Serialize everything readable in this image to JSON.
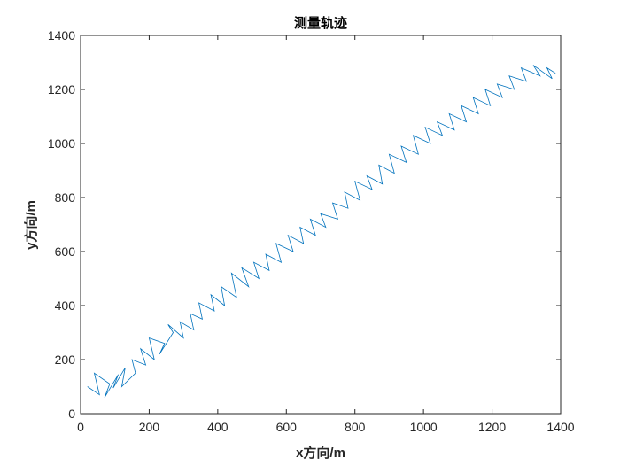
{
  "chart_data": {
    "type": "line",
    "title": "测量轨迹",
    "xlabel": "x方向/m",
    "ylabel": "y方向/m",
    "xlim": [
      0,
      1400
    ],
    "ylim": [
      0,
      1400
    ],
    "xticks": [
      "0",
      "200",
      "400",
      "600",
      "800",
      "1000",
      "1200",
      "1400"
    ],
    "yticks": [
      "0",
      "200",
      "400",
      "600",
      "800",
      "1000",
      "1200",
      "1400"
    ],
    "grid": false,
    "line_color": "#0072BD",
    "series": [
      {
        "x": [
          20,
          55,
          40,
          85,
          70,
          110,
          95,
          130,
          120,
          160,
          150,
          190,
          175,
          215,
          200,
          245,
          230,
          270,
          255,
          300,
          290,
          330,
          320,
          355,
          345,
          390,
          380,
          420,
          410,
          455,
          440,
          490,
          470,
          520,
          505,
          550,
          540,
          585,
          570,
          620,
          605,
          650,
          640,
          685,
          670,
          715,
          700,
          750,
          735,
          780,
          770,
          815,
          800,
          850,
          835,
          880,
          870,
          915,
          900,
          950,
          935,
          985,
          970,
          1020,
          1005,
          1055,
          1040,
          1090,
          1075,
          1125,
          1110,
          1160,
          1145,
          1195,
          1180,
          1230,
          1215,
          1265,
          1250,
          1300,
          1285,
          1340,
          1320,
          1375,
          1360,
          1385
        ],
        "y": [
          100,
          70,
          150,
          110,
          60,
          145,
          95,
          170,
          100,
          150,
          200,
          180,
          240,
          200,
          280,
          260,
          220,
          300,
          330,
          280,
          340,
          310,
          370,
          350,
          410,
          380,
          440,
          400,
          470,
          430,
          520,
          470,
          540,
          500,
          560,
          530,
          590,
          560,
          630,
          600,
          660,
          630,
          690,
          660,
          720,
          690,
          740,
          720,
          780,
          760,
          820,
          790,
          860,
          830,
          880,
          850,
          920,
          890,
          960,
          930,
          990,
          960,
          1030,
          1000,
          1060,
          1030,
          1080,
          1050,
          1110,
          1080,
          1140,
          1110,
          1170,
          1140,
          1200,
          1170,
          1220,
          1200,
          1250,
          1230,
          1280,
          1250,
          1290,
          1240,
          1280,
          1260
        ]
      }
    ]
  }
}
